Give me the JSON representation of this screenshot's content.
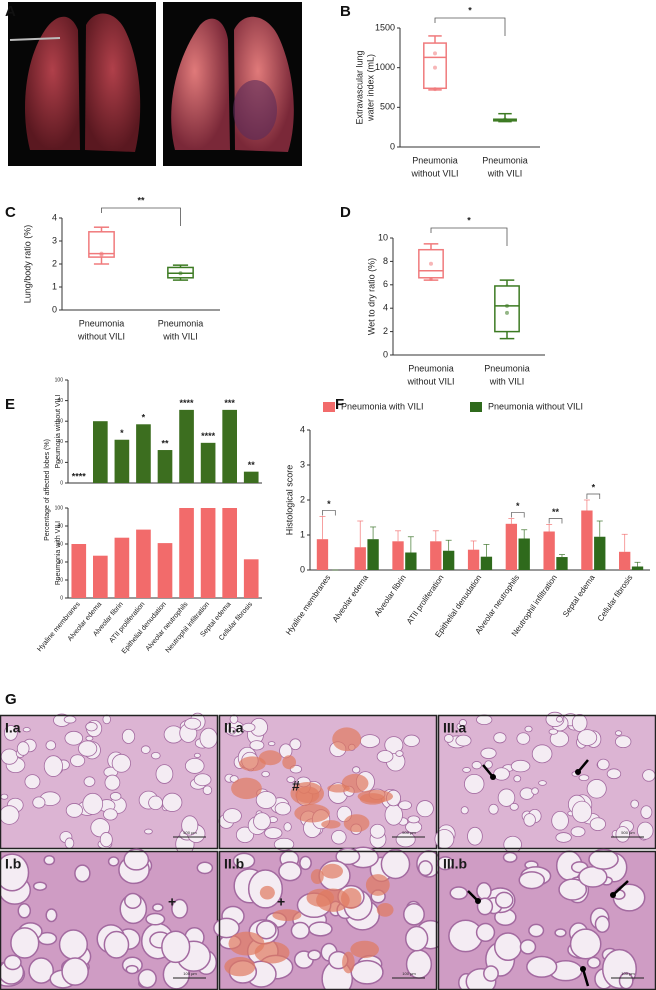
{
  "photos": {
    "label": "A"
  },
  "chart_data": [
    {
      "type": "box",
      "label": "B",
      "ylabel": [
        "Extravascular lung",
        "water index (mL)"
      ],
      "categories": [
        [
          "Pneumonia",
          "without VILI"
        ],
        [
          "Pneumonia",
          "with VILI"
        ]
      ],
      "ylim": [
        0,
        1500
      ],
      "yticks": [
        0,
        500,
        1000,
        1500
      ],
      "significance": "*",
      "boxes": [
        {
          "color": "#f07a7c",
          "min": 720,
          "q1": 740,
          "median": 1130,
          "q3": 1310,
          "max": 1400,
          "points": [
            1180,
            1000,
            730
          ]
        },
        {
          "color": "#3c7a22",
          "min": 320,
          "q1": 330,
          "median": 345,
          "q3": 350,
          "max": 420,
          "points": [
            345
          ]
        }
      ]
    },
    {
      "type": "box",
      "label": "C",
      "ylabel": [
        "Lung/body ratio (%)"
      ],
      "categories": [
        [
          "Pneumonia",
          "without VILI"
        ],
        [
          "Pneumonia",
          "with VILI"
        ]
      ],
      "ylim": [
        0,
        4
      ],
      "yticks": [
        0,
        1,
        2,
        3,
        4
      ],
      "significance": "**",
      "boxes": [
        {
          "color": "#f07a7c",
          "min": 2.0,
          "q1": 2.3,
          "median": 2.45,
          "q3": 3.4,
          "max": 3.6,
          "points": [
            2.45,
            2.4
          ]
        },
        {
          "color": "#3c7a22",
          "min": 1.3,
          "q1": 1.4,
          "median": 1.6,
          "q3": 1.85,
          "max": 1.95,
          "points": [
            1.6
          ]
        }
      ]
    },
    {
      "type": "box",
      "label": "D",
      "ylabel": [
        "Wet to dry ratio (%)"
      ],
      "categories": [
        [
          "Pneumonia",
          "without VILI"
        ],
        [
          "Pneumonia",
          "with VILI"
        ]
      ],
      "ylim": [
        0,
        10
      ],
      "yticks": [
        0,
        2,
        4,
        6,
        8,
        10
      ],
      "significance": "*",
      "boxes": [
        {
          "color": "#f07a7c",
          "min": 6.4,
          "q1": 6.6,
          "median": 7.2,
          "q3": 9.0,
          "max": 9.5,
          "points": [
            7.8,
            6.5
          ]
        },
        {
          "color": "#3c7a22",
          "min": 1.4,
          "q1": 2.0,
          "median": 4.2,
          "q3": 5.9,
          "max": 6.4,
          "points": [
            4.2,
            3.6
          ]
        }
      ]
    },
    {
      "type": "bar",
      "label": "E",
      "shared_ylabel": "Percentage of affected lobes (%)",
      "ylabel": [
        "Pneumonia without VILI"
      ],
      "color": "#3c6e1f",
      "values": [
        0,
        60,
        42,
        57,
        32,
        71,
        39,
        71,
        11
      ],
      "ylim": [
        0,
        100
      ],
      "yticks": [
        0,
        20,
        40,
        60,
        80,
        100
      ],
      "significance": [
        "****",
        null,
        "*",
        "*",
        "**",
        "****",
        "****",
        "***",
        "**"
      ]
    },
    {
      "type": "bar",
      "ylabel": [
        "Pneumonia with VILI"
      ],
      "color": "#f26b6b",
      "values": [
        60,
        47,
        67,
        76,
        61,
        100,
        100,
        100,
        43
      ],
      "ylim": [
        0,
        100
      ],
      "yticks": [
        0,
        20,
        40,
        60,
        80,
        100
      ],
      "categories": [
        "Hyaline membranes",
        "Alveolar edema",
        "Alveolar fibrin",
        "ATII proliferation",
        "Epithelial denudation",
        "Alveolar neutrophils",
        "Neutrophil infiltration",
        "Septal edema",
        "Cellular fibrosis"
      ]
    },
    {
      "type": "bar",
      "label": "F",
      "ylabel": [
        "Histological score"
      ],
      "ylim": [
        0,
        4
      ],
      "yticks": [
        0,
        1,
        2,
        3,
        4
      ],
      "categories": [
        "Hyaline membranes",
        "Alveolar edema",
        "Alveolar fibrin",
        "ATII proliferation",
        "Epithelial denudation",
        "Alveolar neutrophils",
        "Neutrophil infiltration",
        "Septal edema",
        "Cellular fibrosis"
      ],
      "series": [
        {
          "name": "Pneumonia with VILI",
          "color": "#f26b6b",
          "values": [
            0.88,
            0.65,
            0.82,
            0.82,
            0.58,
            1.32,
            1.1,
            1.7,
            0.52
          ],
          "errors": [
            0.65,
            0.75,
            0.3,
            0.3,
            0.25,
            0.15,
            0.2,
            0.3,
            0.5
          ]
        },
        {
          "name": "Pneumonia without VILI",
          "color": "#2f6a1c",
          "values": [
            0,
            0.88,
            0.5,
            0.55,
            0.38,
            0.9,
            0.37,
            0.95,
            0.1
          ],
          "errors": [
            0,
            0.35,
            0.45,
            0.3,
            0.35,
            0.25,
            0.07,
            0.45,
            0.12
          ]
        }
      ],
      "significance": [
        "*",
        null,
        null,
        null,
        null,
        "*",
        "**",
        "*",
        null
      ]
    }
  ],
  "micrographs": {
    "label": "G",
    "panels": [
      {
        "label": "I.a",
        "scale": "500 µm"
      },
      {
        "label": "II.a",
        "scale": "500 µm",
        "symbol": "#"
      },
      {
        "label": "III.a",
        "scale": "500 µm"
      },
      {
        "label": "I.b",
        "scale": "100 µm",
        "symbol": "+"
      },
      {
        "label": "II.b",
        "scale": "100 µm",
        "symbol": "+"
      },
      {
        "label": "III.b",
        "scale": "100 µm"
      }
    ]
  }
}
